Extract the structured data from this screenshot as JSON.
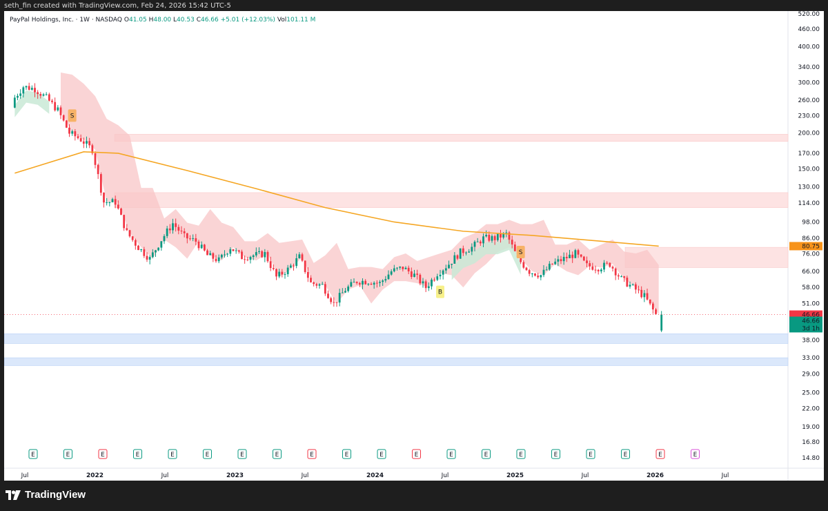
{
  "header": {
    "credit": "seth_fin created with TradingView.com, Feb 24, 2026 15:42 UTC-5"
  },
  "legend": {
    "symbol": "PayPal Holdings, Inc. · 1W · NASDAQ",
    "o_label": "O",
    "o_value": "41.05",
    "h_label": "H",
    "h_value": "48.00",
    "l_label": "L",
    "l_value": "40.53",
    "c_label": "C",
    "c_value": "46.66",
    "change": "+5.01 (+12.03%)",
    "vol_label": "Vol",
    "vol_value": "101.11 M"
  },
  "brand": {
    "name": "TradingView"
  },
  "colors": {
    "up": "#089981",
    "down": "#f23645",
    "ma": "#f5a623",
    "resistance_zone": "#fde3e3",
    "support_zone": "#dbe8fb",
    "cloud_bear": "#f8c5c7",
    "cloud_bull": "#c9e9d6"
  },
  "chart_data": {
    "type": "candlestick",
    "title": "PayPal Holdings, Inc. · 1W · NASDAQ",
    "scale": "log",
    "ylim": [
      14,
      520
    ],
    "price_ticks": [
      "520.00",
      "460.00",
      "400.00",
      "340.00",
      "300.00",
      "260.00",
      "230.00",
      "200.00",
      "170.00",
      "150.00",
      "130.00",
      "114.00",
      "98.00",
      "86.00",
      "76.00",
      "66.00",
      "58.00",
      "51.00",
      "44.00",
      "38.00",
      "33.00",
      "29.00",
      "25.00",
      "22.00",
      "19.00",
      "16.80",
      "14.80"
    ],
    "time_ticks": [
      {
        "label": "Jul",
        "year": false
      },
      {
        "label": "2022",
        "year": true
      },
      {
        "label": "Jul",
        "year": false
      },
      {
        "label": "2023",
        "year": true
      },
      {
        "label": "Jul",
        "year": false
      },
      {
        "label": "2024",
        "year": true
      },
      {
        "label": "Jul",
        "year": false
      },
      {
        "label": "2025",
        "year": true
      },
      {
        "label": "Jul",
        "year": false
      },
      {
        "label": "2026",
        "year": true
      },
      {
        "label": "Jul",
        "year": false
      }
    ],
    "price_labels": [
      {
        "text": "80.75",
        "price": 80.75,
        "color": "#f7931a"
      },
      {
        "text": "46.66",
        "price": 46.66,
        "color": "#f23645"
      },
      {
        "text": "46.66",
        "price": 44.4,
        "color": "#089981"
      },
      {
        "text": "3d 1h",
        "price": 41.8,
        "color": "#089981"
      }
    ],
    "close_series_weekly_approx": [
      {
        "date": "2021-06",
        "close": 258
      },
      {
        "date": "2021-07",
        "close": 290
      },
      {
        "date": "2021-08",
        "close": 285
      },
      {
        "date": "2021-09",
        "close": 265
      },
      {
        "date": "2021-10",
        "close": 240
      },
      {
        "date": "2021-11",
        "close": 200
      },
      {
        "date": "2021-12",
        "close": 190
      },
      {
        "date": "2022-01",
        "close": 175
      },
      {
        "date": "2022-02",
        "close": 115
      },
      {
        "date": "2022-03",
        "close": 115
      },
      {
        "date": "2022-04",
        "close": 90
      },
      {
        "date": "2022-05",
        "close": 80
      },
      {
        "date": "2022-06",
        "close": 73
      },
      {
        "date": "2022-07",
        "close": 85
      },
      {
        "date": "2022-08",
        "close": 97
      },
      {
        "date": "2022-09",
        "close": 87
      },
      {
        "date": "2022-10",
        "close": 84
      },
      {
        "date": "2022-11",
        "close": 75
      },
      {
        "date": "2022-12",
        "close": 72
      },
      {
        "date": "2023-01",
        "close": 80
      },
      {
        "date": "2023-02",
        "close": 74
      },
      {
        "date": "2023-03",
        "close": 75
      },
      {
        "date": "2023-04",
        "close": 76
      },
      {
        "date": "2023-05",
        "close": 63
      },
      {
        "date": "2023-06",
        "close": 67
      },
      {
        "date": "2023-07",
        "close": 74
      },
      {
        "date": "2023-08",
        "close": 60
      },
      {
        "date": "2023-09",
        "close": 59
      },
      {
        "date": "2023-10",
        "close": 51
      },
      {
        "date": "2023-11",
        "close": 57
      },
      {
        "date": "2023-12",
        "close": 61
      },
      {
        "date": "2024-01",
        "close": 61
      },
      {
        "date": "2024-02",
        "close": 60
      },
      {
        "date": "2024-03",
        "close": 66
      },
      {
        "date": "2024-04",
        "close": 68
      },
      {
        "date": "2024-05",
        "close": 64
      },
      {
        "date": "2024-06",
        "close": 58
      },
      {
        "date": "2024-07",
        "close": 65
      },
      {
        "date": "2024-08",
        "close": 70
      },
      {
        "date": "2024-09",
        "close": 77
      },
      {
        "date": "2024-10",
        "close": 80
      },
      {
        "date": "2024-11",
        "close": 86
      },
      {
        "date": "2024-12",
        "close": 86
      },
      {
        "date": "2025-01",
        "close": 89
      },
      {
        "date": "2025-02",
        "close": 73
      },
      {
        "date": "2025-03",
        "close": 66
      },
      {
        "date": "2025-04",
        "close": 64
      },
      {
        "date": "2025-05",
        "close": 70
      },
      {
        "date": "2025-06",
        "close": 73
      },
      {
        "date": "2025-07",
        "close": 76
      },
      {
        "date": "2025-08",
        "close": 69
      },
      {
        "date": "2025-09",
        "close": 68
      },
      {
        "date": "2025-10",
        "close": 70
      },
      {
        "date": "2025-11",
        "close": 62
      },
      {
        "date": "2025-12",
        "close": 58
      },
      {
        "date": "2026-01",
        "close": 54
      },
      {
        "date": "2026-02",
        "close": 46.66
      }
    ],
    "moving_average_approx": [
      {
        "date": "2021-06",
        "value": 145
      },
      {
        "date": "2021-12",
        "value": 172
      },
      {
        "date": "2022-03",
        "value": 170
      },
      {
        "date": "2022-09",
        "value": 148
      },
      {
        "date": "2023-03",
        "value": 128
      },
      {
        "date": "2023-09",
        "value": 110
      },
      {
        "date": "2024-03",
        "value": 98
      },
      {
        "date": "2024-09",
        "value": 91
      },
      {
        "date": "2025-03",
        "value": 88
      },
      {
        "date": "2025-09",
        "value": 84
      },
      {
        "date": "2026-02",
        "value": 80.75
      }
    ],
    "zones": [
      {
        "kind": "resistance",
        "low": 187,
        "high": 198
      },
      {
        "kind": "resistance",
        "low": 110,
        "high": 124
      },
      {
        "kind": "resistance",
        "low": 68,
        "high": 80
      },
      {
        "kind": "support",
        "low": 37,
        "high": 40
      },
      {
        "kind": "support",
        "low": 31,
        "high": 33
      }
    ],
    "signal_markers": [
      {
        "text": "S",
        "date": "2021-11",
        "price": 230
      },
      {
        "text": "B",
        "date": "2024-07",
        "price": 56
      },
      {
        "text": "S",
        "date": "2025-02",
        "price": 77
      }
    ],
    "earnings_markers": [
      "E",
      "E",
      "E",
      "E",
      "E",
      "E",
      "E",
      "E",
      "E",
      "E",
      "E",
      "E",
      "E",
      "E",
      "E",
      "E",
      "E",
      "E",
      "E",
      "E"
    ]
  }
}
